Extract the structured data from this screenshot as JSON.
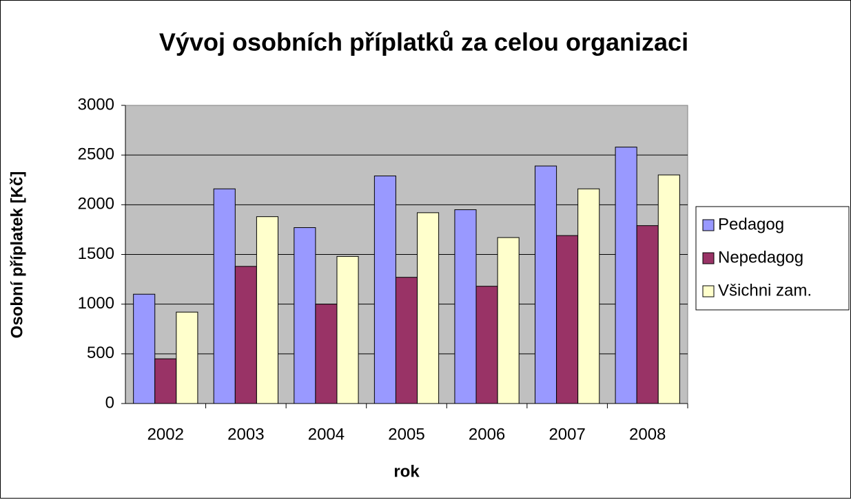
{
  "chart_data": {
    "type": "bar",
    "title": "Vývoj osobních příplatků za celou organizaci",
    "x_label": "rok",
    "y_label": "Osobní příplatek [Kč]",
    "categories": [
      "2002",
      "2003",
      "2004",
      "2005",
      "2006",
      "2007",
      "2008"
    ],
    "series": [
      {
        "name": "Pedagog",
        "color": "#9999ff",
        "values": [
          1100,
          2160,
          1770,
          2290,
          1950,
          2390,
          2580
        ]
      },
      {
        "name": "Nepedagog",
        "color": "#993366",
        "values": [
          450,
          1380,
          1000,
          1270,
          1180,
          1690,
          1790
        ]
      },
      {
        "name": "Všichni zam.",
        "color": "#ffffcc",
        "values": [
          920,
          1880,
          1480,
          1920,
          1670,
          2160,
          2300
        ]
      }
    ],
    "ylim": [
      0,
      3000
    ],
    "yticks": [
      0,
      500,
      1000,
      1500,
      2000,
      2500,
      3000
    ],
    "grid": true,
    "legend": "right"
  }
}
